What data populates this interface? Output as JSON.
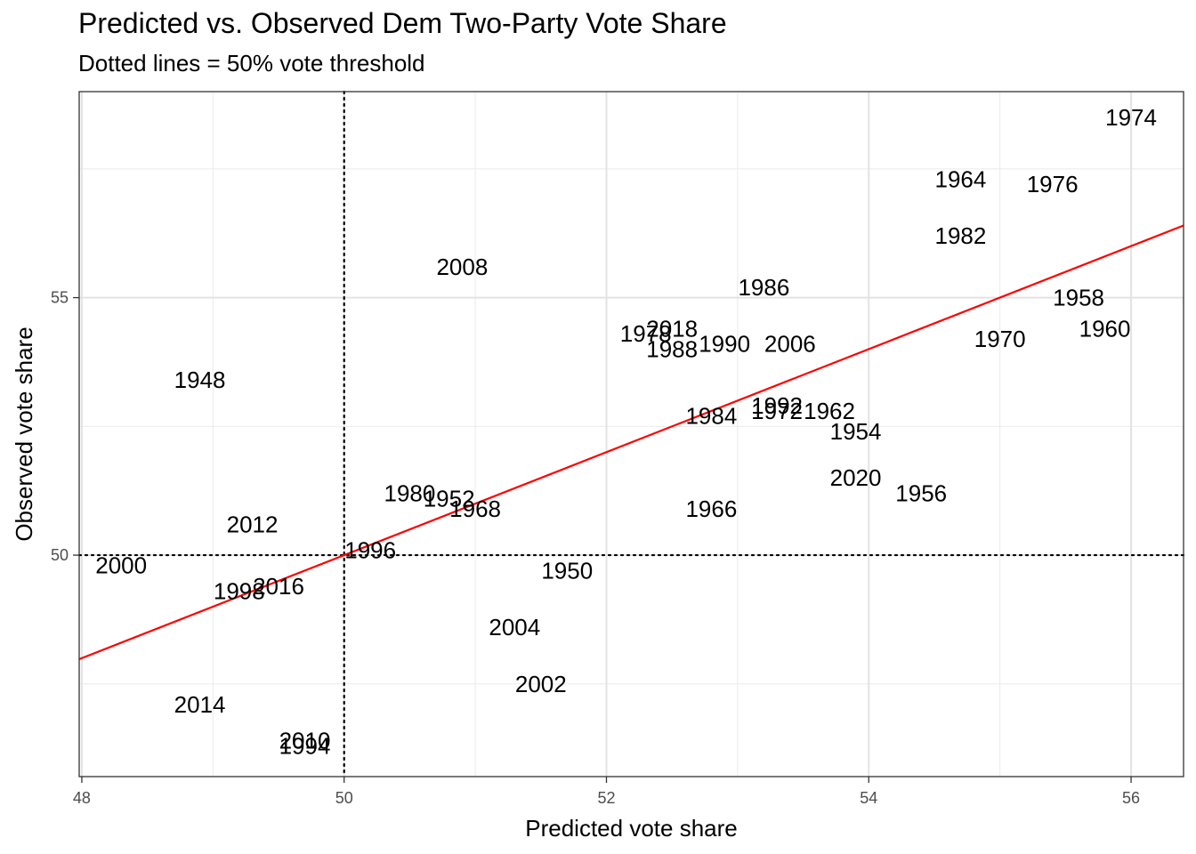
{
  "title": "Predicted vs. Observed Dem Two-Party Vote Share",
  "subtitle": "Dotted lines = 50% vote threshold",
  "chart_data": {
    "type": "scatter",
    "title": "Predicted vs. Observed Dem Two-Party Vote Share",
    "subtitle": "Dotted lines = 50% vote threshold",
    "xlabel": "Predicted vote share",
    "ylabel": "Observed vote share",
    "xlim": [
      47.98,
      56.4
    ],
    "ylim": [
      45.7,
      59.0
    ],
    "xticks": [
      48,
      50,
      52,
      54,
      56
    ],
    "yticks": [
      50,
      55
    ],
    "grid": true,
    "reference_lines": {
      "x": 50,
      "y": 50,
      "style": "dotted"
    },
    "fit_line": {
      "color": "#ff0000",
      "slope": 1.0,
      "intercept": 0.0
    },
    "points": [
      {
        "label": "1948",
        "x": 48.9,
        "y": 53.4
      },
      {
        "label": "1950",
        "x": 51.7,
        "y": 49.7
      },
      {
        "label": "1952",
        "x": 50.8,
        "y": 51.1
      },
      {
        "label": "1954",
        "x": 53.9,
        "y": 52.4
      },
      {
        "label": "1956",
        "x": 54.4,
        "y": 51.2
      },
      {
        "label": "1958",
        "x": 55.6,
        "y": 55.0
      },
      {
        "label": "1960",
        "x": 55.8,
        "y": 54.4
      },
      {
        "label": "1962",
        "x": 53.7,
        "y": 52.8
      },
      {
        "label": "1964",
        "x": 54.7,
        "y": 57.3
      },
      {
        "label": "1966",
        "x": 52.8,
        "y": 50.9
      },
      {
        "label": "1968",
        "x": 51.0,
        "y": 50.9
      },
      {
        "label": "1970",
        "x": 55.0,
        "y": 54.2
      },
      {
        "label": "1972",
        "x": 53.3,
        "y": 52.8
      },
      {
        "label": "1974",
        "x": 56.0,
        "y": 58.5
      },
      {
        "label": "1976",
        "x": 55.4,
        "y": 57.2
      },
      {
        "label": "1978",
        "x": 52.3,
        "y": 54.3
      },
      {
        "label": "1980",
        "x": 50.5,
        "y": 51.2
      },
      {
        "label": "1982",
        "x": 54.7,
        "y": 56.2
      },
      {
        "label": "1984",
        "x": 52.8,
        "y": 52.7
      },
      {
        "label": "1986",
        "x": 53.2,
        "y": 55.2
      },
      {
        "label": "1988",
        "x": 52.5,
        "y": 54.0
      },
      {
        "label": "1990",
        "x": 52.9,
        "y": 54.1
      },
      {
        "label": "1992",
        "x": 53.3,
        "y": 52.9
      },
      {
        "label": "1994",
        "x": 49.7,
        "y": 46.3
      },
      {
        "label": "1996",
        "x": 50.2,
        "y": 50.1
      },
      {
        "label": "1998",
        "x": 49.2,
        "y": 49.3
      },
      {
        "label": "2000",
        "x": 48.3,
        "y": 49.8
      },
      {
        "label": "2002",
        "x": 51.5,
        "y": 47.5
      },
      {
        "label": "2004",
        "x": 51.3,
        "y": 48.6
      },
      {
        "label": "2006",
        "x": 53.4,
        "y": 54.1
      },
      {
        "label": "2008",
        "x": 50.9,
        "y": 55.6
      },
      {
        "label": "2010",
        "x": 49.7,
        "y": 46.4
      },
      {
        "label": "2012",
        "x": 49.3,
        "y": 50.6
      },
      {
        "label": "2014",
        "x": 48.9,
        "y": 47.1
      },
      {
        "label": "2016",
        "x": 49.5,
        "y": 49.4
      },
      {
        "label": "2018",
        "x": 52.5,
        "y": 54.4
      },
      {
        "label": "2020",
        "x": 53.9,
        "y": 51.5
      }
    ]
  }
}
